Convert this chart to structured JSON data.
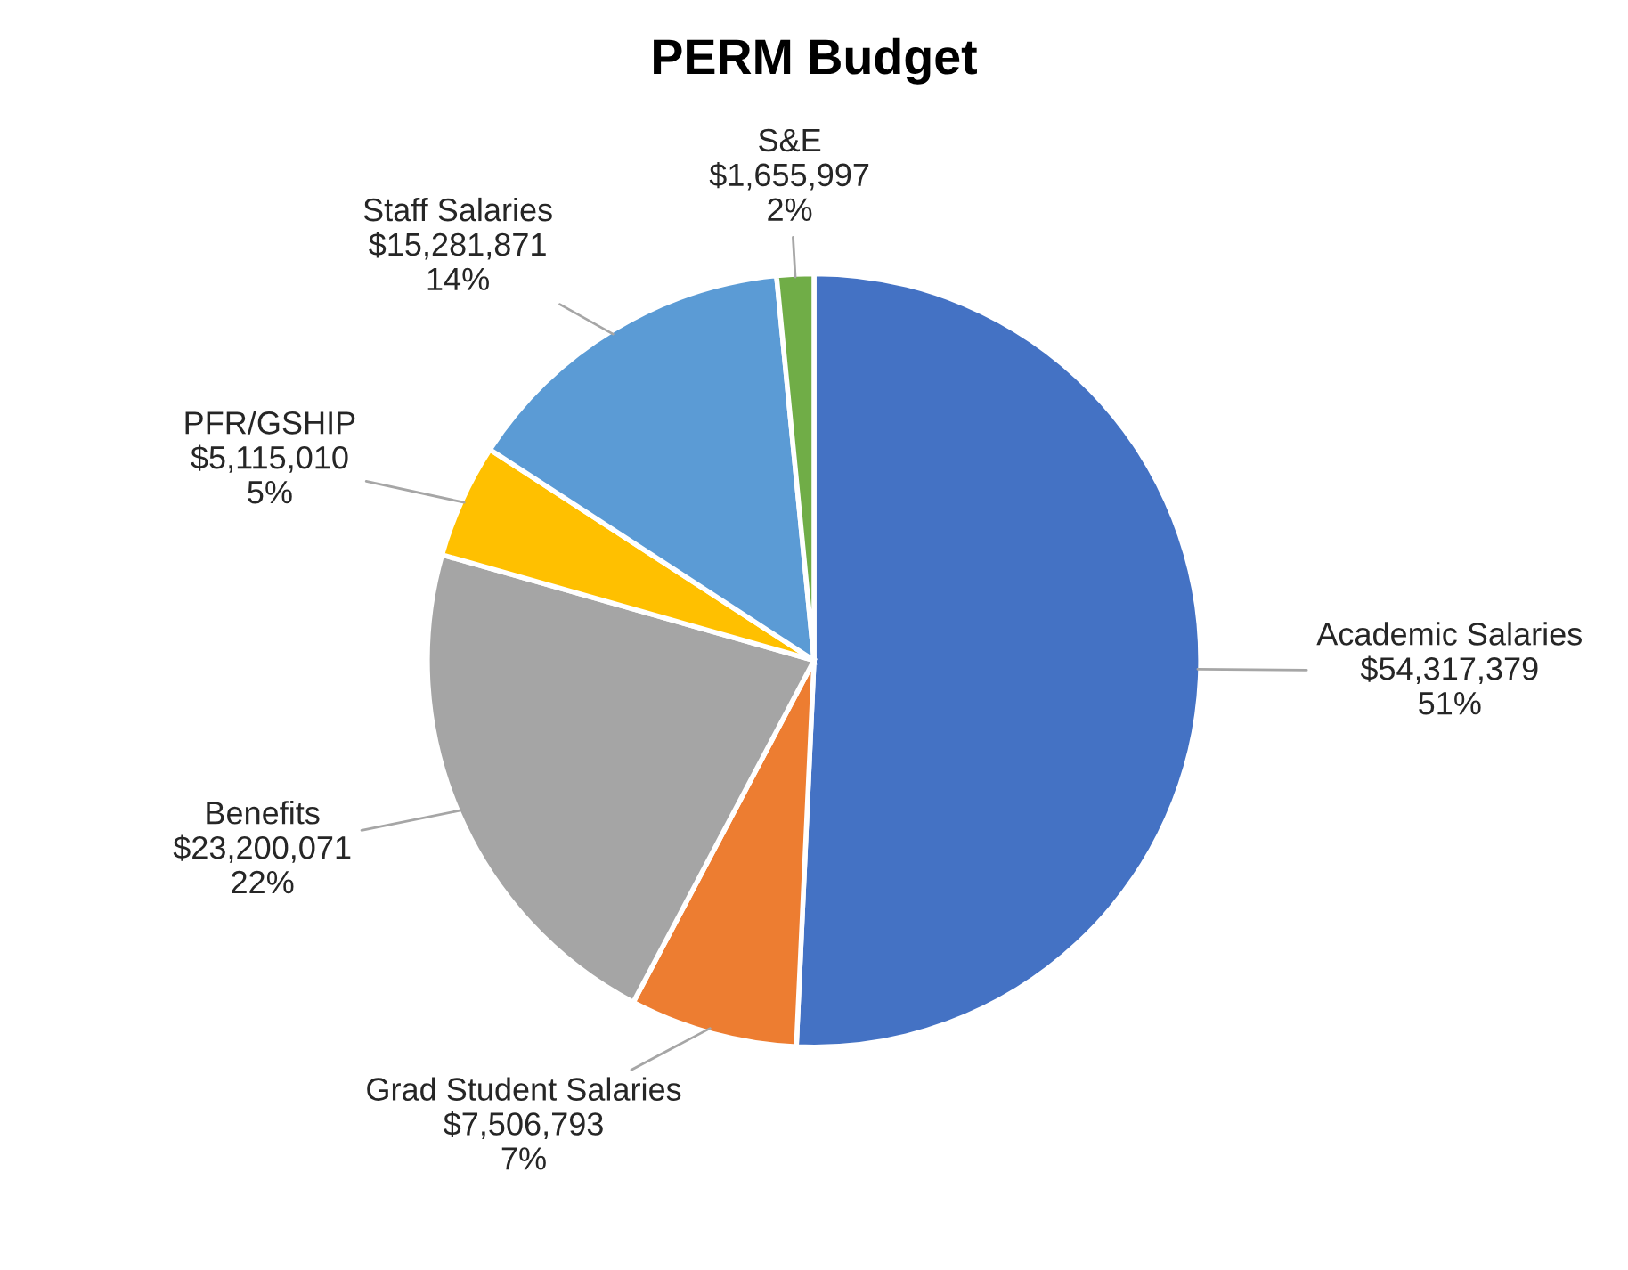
{
  "chart_data": {
    "type": "pie",
    "title": "PERM Budget",
    "categories": [
      "Academic Salaries",
      "Grad Student Salaries",
      "Benefits",
      "PFR/GSHIP",
      "Staff Salaries",
      "S&E"
    ],
    "values": [
      54317379,
      7506793,
      23200071,
      5115010,
      15281871,
      1655997
    ],
    "value_labels": [
      "$54,317,379\n51%",
      "$7,506,793\n7%",
      "$23,200,071\n22%",
      "$5,115,010\n5%",
      "$15,281,871\n14%",
      "$1,655,997\n2%"
    ],
    "colors": [
      "#4472c4",
      "#ed7d31",
      "#a5a5a5",
      "#ffc000",
      "#5b9bd5",
      "#70ad47"
    ]
  }
}
